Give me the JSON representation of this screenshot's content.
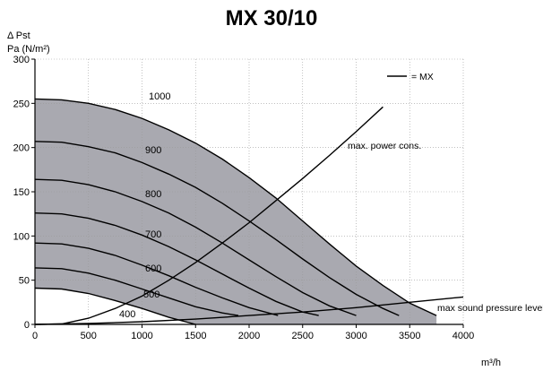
{
  "chart_data": {
    "type": "line",
    "title": "MX 30/10",
    "ylabel_line1": "Δ Pst",
    "ylabel_line2": "Pa (N/m²)",
    "xlabel": "m³/h",
    "xlim": [
      0,
      4000
    ],
    "ylim": [
      0,
      300
    ],
    "xticks": [
      0,
      500,
      1000,
      1500,
      2000,
      2500,
      3000,
      3500,
      4000
    ],
    "yticks": [
      0,
      50,
      100,
      150,
      200,
      250,
      300
    ],
    "grid": true,
    "legend": {
      "position": "top-right",
      "label": "= MX"
    },
    "shaded_region": "operating area between speed 400 and speed 1000 curves",
    "series": [
      {
        "name": "1000",
        "x": [
          0,
          250,
          500,
          750,
          1000,
          1250,
          1500,
          1750,
          2000,
          2250,
          2500,
          2750,
          3000,
          3250,
          3500,
          3750
        ],
        "y": [
          255,
          254,
          250,
          243,
          233,
          220,
          205,
          187,
          166,
          143,
          117,
          91,
          66,
          44,
          24,
          10
        ]
      },
      {
        "name": "900",
        "x": [
          0,
          250,
          500,
          750,
          1000,
          1250,
          1500,
          1750,
          2000,
          2250,
          2500,
          2750,
          3000,
          3250,
          3400
        ],
        "y": [
          207,
          206,
          201,
          194,
          183,
          170,
          155,
          137,
          117,
          96,
          74,
          53,
          34,
          18,
          10
        ]
      },
      {
        "name": "800",
        "x": [
          0,
          250,
          500,
          750,
          1000,
          1250,
          1500,
          1750,
          2000,
          2250,
          2500,
          2750,
          3000
        ],
        "y": [
          164,
          163,
          158,
          150,
          139,
          126,
          110,
          92,
          73,
          54,
          36,
          21,
          10
        ]
      },
      {
        "name": "700",
        "x": [
          0,
          250,
          500,
          750,
          1000,
          1250,
          1500,
          1750,
          2000,
          2250,
          2500,
          2650
        ],
        "y": [
          126,
          125,
          120,
          112,
          101,
          88,
          73,
          57,
          41,
          26,
          14,
          10
        ]
      },
      {
        "name": "600",
        "x": [
          0,
          250,
          500,
          750,
          1000,
          1250,
          1500,
          1750,
          2000,
          2270
        ],
        "y": [
          92,
          91,
          86,
          78,
          67,
          55,
          42,
          30,
          19,
          10
        ]
      },
      {
        "name": "500",
        "x": [
          0,
          250,
          500,
          750,
          1000,
          1250,
          1500,
          1750,
          1900
        ],
        "y": [
          64,
          63,
          58,
          50,
          40,
          30,
          20,
          13,
          10
        ]
      },
      {
        "name": "400",
        "x": [
          0,
          250,
          500,
          750,
          1000,
          1250,
          1500
        ],
        "y": [
          41,
          40,
          35,
          27,
          18,
          8,
          0
        ]
      },
      {
        "name": "max. power cons.",
        "x": [
          0,
          250,
          500,
          750,
          1000,
          1250,
          1500,
          1750,
          2000,
          2250,
          2500,
          2750,
          3000,
          3250
        ],
        "y": [
          0,
          0.5,
          7,
          18,
          32,
          50,
          70,
          92,
          115,
          140,
          165,
          191,
          218,
          246
        ]
      },
      {
        "name": "max sound pressure level",
        "x": [
          0,
          500,
          1000,
          1500,
          2000,
          2500,
          3000,
          3500,
          4000
        ],
        "y": [
          0,
          1,
          3,
          6,
          10,
          14,
          19,
          25,
          31
        ]
      }
    ]
  },
  "labels": {
    "max_power": "max. power cons.",
    "max_sound": "max sound pressure level"
  }
}
